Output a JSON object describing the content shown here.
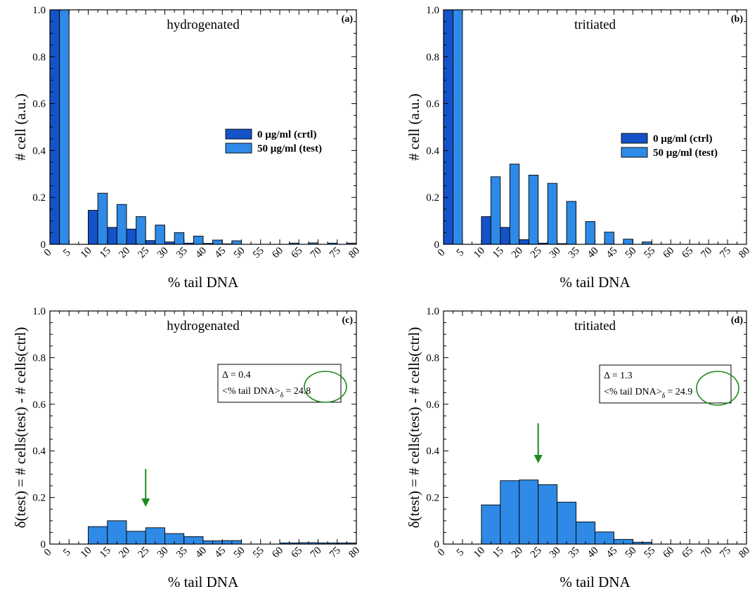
{
  "chart_data": [
    {
      "type": "bar",
      "panel": "(a)",
      "title": "hydrogenated",
      "xlabel": "% tail DNA",
      "ylabel": "# cell (a.u.)",
      "xlim": [
        0,
        80
      ],
      "ylim": [
        0,
        1.0
      ],
      "xticks": [
        0,
        5,
        10,
        15,
        20,
        25,
        30,
        35,
        40,
        45,
        50,
        55,
        60,
        65,
        70,
        75,
        80
      ],
      "yticks": [
        "0",
        "0.2",
        "0.4",
        "0.6",
        "0.8",
        "1.0"
      ],
      "legend_position": "middle-right",
      "bin_starts": [
        0,
        10,
        15,
        20,
        25,
        30,
        35,
        40,
        45,
        50,
        55,
        60,
        65,
        70,
        75
      ],
      "series": [
        {
          "name": "0 µg/ml (crtl)",
          "color": "#1452c8",
          "values": [
            1.0,
            0.145,
            0.072,
            0.065,
            0.016,
            0.01,
            0.005,
            0.004,
            0.002,
            0.0,
            0.0,
            0.0,
            0.0,
            0.0,
            0.0
          ]
        },
        {
          "name": "50 µg/ml (test)",
          "color": "#2e8ae6",
          "values": [
            1.0,
            0.218,
            0.17,
            0.118,
            0.082,
            0.05,
            0.035,
            0.018,
            0.015,
            0.0,
            0.0,
            0.005,
            0.006,
            0.005,
            0.005
          ]
        }
      ]
    },
    {
      "type": "bar",
      "panel": "(b)",
      "title": "tritiated",
      "xlabel": "% tail DNA",
      "ylabel": "# cell (a.u.)",
      "xlim": [
        0,
        80
      ],
      "ylim": [
        0,
        1.0
      ],
      "xticks": [
        0,
        5,
        10,
        15,
        20,
        25,
        30,
        35,
        40,
        45,
        50,
        55,
        60,
        65,
        70,
        75,
        80
      ],
      "yticks": [
        "0",
        "0.2",
        "0.4",
        "0.6",
        "0.8",
        "1.0"
      ],
      "legend_position": "middle-right",
      "bin_starts": [
        0,
        10,
        15,
        20,
        25,
        30,
        35,
        40,
        45,
        50,
        55,
        60,
        65,
        70,
        75
      ],
      "series": [
        {
          "name": "0 µg/ml (ctrl)",
          "color": "#1452c8",
          "values": [
            1.0,
            0.118,
            0.072,
            0.02,
            0.005,
            0.003,
            0.0,
            0.0,
            0.0,
            0.0,
            0.0,
            0.0,
            0.0,
            0.0,
            0.0
          ]
        },
        {
          "name": "50 µg/ml (test)",
          "color": "#2e8ae6",
          "values": [
            1.0,
            0.288,
            0.342,
            0.295,
            0.26,
            0.183,
            0.097,
            0.052,
            0.022,
            0.01,
            0.0,
            0.0,
            0.0,
            0.0,
            0.0
          ]
        }
      ]
    },
    {
      "type": "bar",
      "panel": "(c)",
      "title": "hydrogenated",
      "xlabel": "% tail DNA",
      "ylabel": "δ(test) = # cells(test) - # cells(ctrl)",
      "xlim": [
        0,
        80
      ],
      "ylim": [
        0,
        1.0
      ],
      "xticks": [
        0,
        5,
        10,
        15,
        20,
        25,
        30,
        35,
        40,
        45,
        50,
        55,
        60,
        65,
        70,
        75,
        80
      ],
      "yticks": [
        "0",
        "0.2",
        "0.4",
        "0.6",
        "0.8",
        "1.0"
      ],
      "bin_starts": [
        10,
        15,
        20,
        25,
        30,
        35,
        40,
        45,
        50,
        55,
        60,
        65,
        70,
        75
      ],
      "series": [
        {
          "name": "",
          "color": "#2e8ae6",
          "values": [
            0.075,
            0.1,
            0.055,
            0.07,
            0.045,
            0.032,
            0.014,
            0.015,
            0.0,
            0.0,
            0.005,
            0.006,
            0.005,
            0.005
          ]
        }
      ],
      "annotation": {
        "delta": "Δ = 0.4",
        "mean_prefix": "<% tail DNA>",
        "mean_subscript": "δ",
        "mean_value": "= 24.8"
      },
      "arrow_x": 25,
      "accent_color": "#1f8a1f"
    },
    {
      "type": "bar",
      "panel": "(d)",
      "title": "tritiated",
      "xlabel": "% tail DNA",
      "ylabel": "δ(test) = # cells(test) - # cells(ctrl)",
      "xlim": [
        0,
        80
      ],
      "ylim": [
        0,
        1.0
      ],
      "xticks": [
        0,
        5,
        10,
        15,
        20,
        25,
        30,
        35,
        40,
        45,
        50,
        55,
        60,
        65,
        70,
        75,
        80
      ],
      "yticks": [
        "0",
        "0.2",
        "0.4",
        "0.6",
        "0.8",
        "1.0"
      ],
      "bin_starts": [
        10,
        15,
        20,
        25,
        30,
        35,
        40,
        45,
        50
      ],
      "series": [
        {
          "name": "",
          "color": "#2e8ae6",
          "values": [
            0.168,
            0.272,
            0.275,
            0.255,
            0.18,
            0.095,
            0.052,
            0.02,
            0.008
          ]
        }
      ],
      "annotation": {
        "delta": "Δ = 1.3",
        "mean_prefix": "<% tail DNA>",
        "mean_subscript": "δ",
        "mean_value": "= 24.9"
      },
      "arrow_x": 25,
      "accent_color": "#1f8a1f"
    }
  ]
}
